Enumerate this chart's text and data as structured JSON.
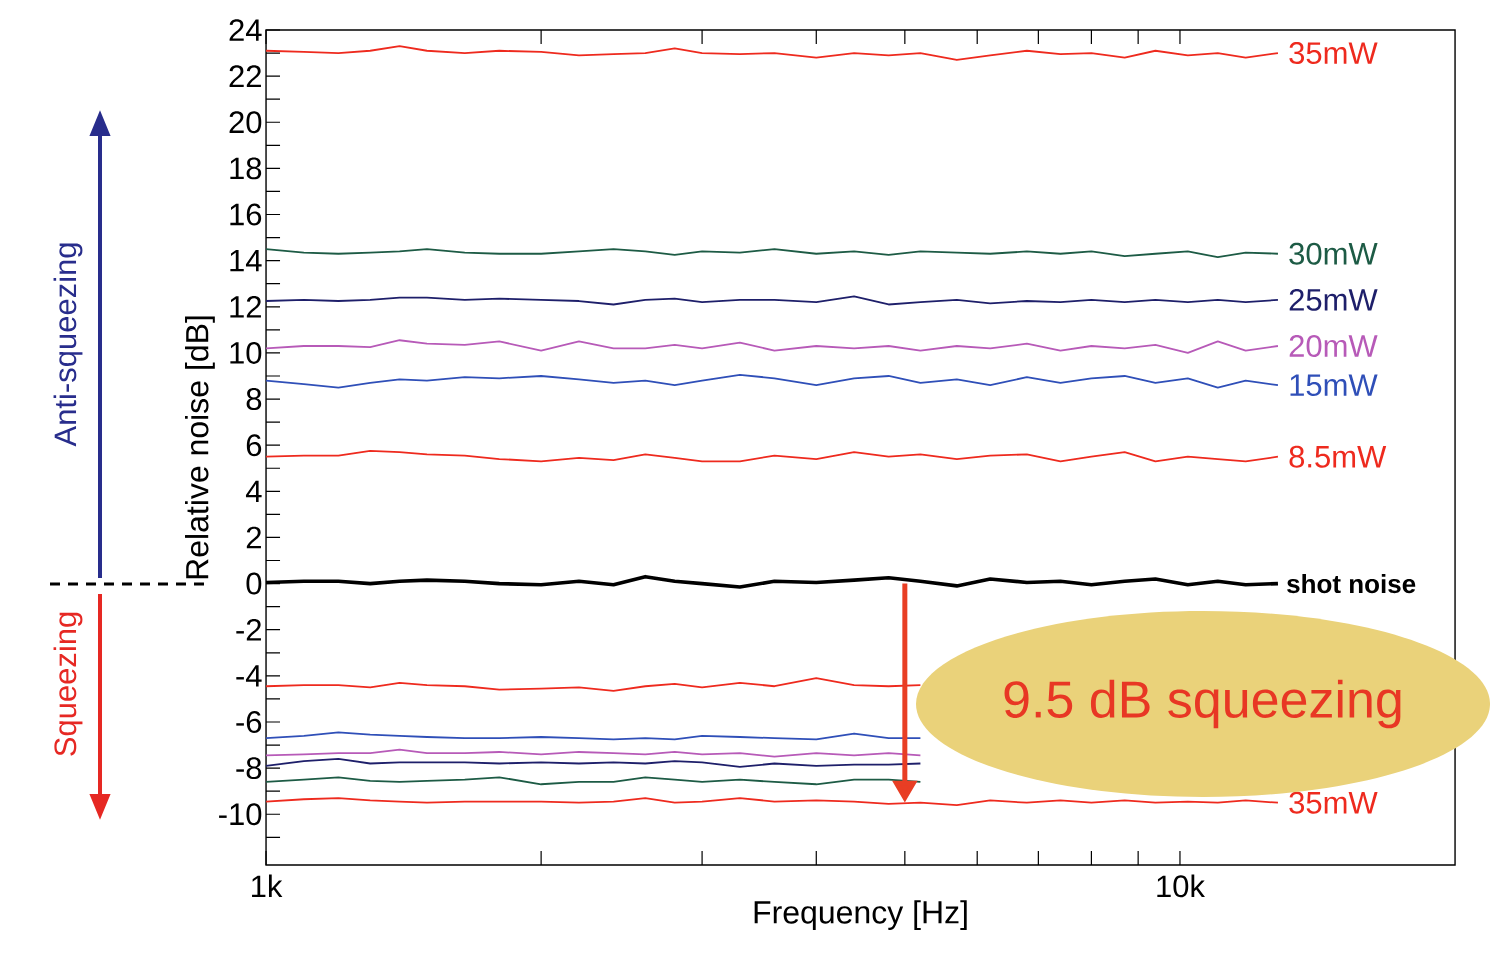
{
  "chart_data": {
    "type": "line",
    "xlabel": "Frequency [Hz]",
    "ylabel": "Relative noise [dB]",
    "log": "x",
    "xlim": [
      1000,
      20000
    ],
    "ylim": [
      -12.2,
      24
    ],
    "xticks": [
      {
        "value": 1000,
        "label": "1k"
      },
      {
        "value": 2000,
        "label": null
      },
      {
        "value": 3000,
        "label": null
      },
      {
        "value": 4000,
        "label": null
      },
      {
        "value": 5000,
        "label": null
      },
      {
        "value": 6000,
        "label": null
      },
      {
        "value": 7000,
        "label": null
      },
      {
        "value": 8000,
        "label": null
      },
      {
        "value": 9000,
        "label": null
      },
      {
        "value": 10000,
        "label": "10k"
      }
    ],
    "yticks": [
      -10,
      {
        "value": -11,
        "label": null
      },
      {
        "value": -9,
        "label": null
      },
      -8,
      {
        "value": -7,
        "label": null
      },
      -6,
      {
        "value": -5,
        "label": null
      },
      -4,
      {
        "value": -3,
        "label": null
      },
      -2,
      {
        "value": -1,
        "label": null
      },
      0,
      {
        "value": 1,
        "label": null
      },
      2,
      {
        "value": 3,
        "label": null
      },
      4,
      {
        "value": 5,
        "label": null
      },
      6,
      {
        "value": 7,
        "label": null
      },
      8,
      {
        "value": 9,
        "label": null
      },
      10,
      {
        "value": 11,
        "label": null
      },
      12,
      {
        "value": 13,
        "label": null
      },
      14,
      {
        "value": 15,
        "label": null
      },
      16,
      {
        "value": 17,
        "label": null
      },
      18,
      {
        "value": 19,
        "label": null
      },
      20,
      {
        "value": 21,
        "label": null
      },
      22,
      {
        "value": 23,
        "label": null
      },
      24
    ],
    "x": [
      1000,
      1100,
      1200,
      1300,
      1400,
      1500,
      1650,
      1800,
      2000,
      2200,
      2400,
      2600,
      2800,
      3000,
      3300,
      3600,
      4000,
      4400,
      4800,
      5200,
      5700,
      6200,
      6800,
      7400,
      8000,
      8700,
      9400,
      10200,
      11000,
      11800,
      12800
    ],
    "series": [
      {
        "name": "35mW",
        "color": "#ee2a1e",
        "values": [
          23.1,
          23.05,
          23.0,
          23.1,
          23.3,
          23.1,
          23.0,
          23.1,
          23.05,
          22.9,
          22.95,
          23.0,
          23.2,
          23.0,
          22.95,
          23.0,
          22.8,
          23.0,
          22.9,
          23.0,
          22.7,
          22.9,
          23.1,
          22.95,
          23.0,
          22.8,
          23.1,
          22.9,
          23.0,
          22.8,
          23.0
        ]
      },
      {
        "name": "30mW",
        "color": "#1d5b45",
        "values": [
          14.5,
          14.35,
          14.3,
          14.35,
          14.4,
          14.5,
          14.35,
          14.3,
          14.3,
          14.4,
          14.5,
          14.4,
          14.25,
          14.4,
          14.35,
          14.5,
          14.3,
          14.4,
          14.25,
          14.4,
          14.35,
          14.3,
          14.4,
          14.3,
          14.4,
          14.2,
          14.3,
          14.4,
          14.15,
          14.35,
          14.3
        ]
      },
      {
        "name": "25mW",
        "color": "#1e1f6a",
        "values": [
          12.25,
          12.3,
          12.25,
          12.3,
          12.4,
          12.4,
          12.3,
          12.35,
          12.3,
          12.25,
          12.1,
          12.3,
          12.35,
          12.2,
          12.3,
          12.3,
          12.2,
          12.45,
          12.1,
          12.2,
          12.3,
          12.15,
          12.25,
          12.2,
          12.3,
          12.2,
          12.3,
          12.2,
          12.3,
          12.2,
          12.3
        ]
      },
      {
        "name": "20mW",
        "color": "#b75ab8",
        "values": [
          10.2,
          10.3,
          10.3,
          10.25,
          10.55,
          10.4,
          10.35,
          10.5,
          10.1,
          10.5,
          10.2,
          10.2,
          10.35,
          10.2,
          10.45,
          10.1,
          10.3,
          10.2,
          10.3,
          10.1,
          10.3,
          10.2,
          10.4,
          10.1,
          10.3,
          10.2,
          10.35,
          10.0,
          10.5,
          10.1,
          10.3
        ]
      },
      {
        "name": "15mW",
        "color": "#2f4fb8",
        "values": [
          8.8,
          8.65,
          8.5,
          8.7,
          8.85,
          8.8,
          8.95,
          8.9,
          9.0,
          8.85,
          8.7,
          8.8,
          8.6,
          8.8,
          9.05,
          8.9,
          8.6,
          8.9,
          9.0,
          8.7,
          8.85,
          8.6,
          8.95,
          8.7,
          8.9,
          9.0,
          8.7,
          8.9,
          8.5,
          8.8,
          8.6
        ]
      },
      {
        "name": "8.5mW",
        "color": "#ee2a1e",
        "values": [
          5.5,
          5.55,
          5.55,
          5.75,
          5.7,
          5.6,
          5.55,
          5.4,
          5.3,
          5.45,
          5.35,
          5.6,
          5.45,
          5.3,
          5.3,
          5.55,
          5.4,
          5.7,
          5.5,
          5.6,
          5.4,
          5.55,
          5.6,
          5.3,
          5.5,
          5.7,
          5.3,
          5.5,
          5.4,
          5.3,
          5.5
        ]
      },
      {
        "name": "shot noise",
        "color": "#000000",
        "values": [
          0.05,
          0.1,
          0.1,
          0.0,
          0.1,
          0.15,
          0.1,
          0.0,
          -0.05,
          0.1,
          -0.05,
          0.3,
          0.1,
          0.0,
          -0.15,
          0.1,
          0.05,
          0.15,
          0.25,
          0.1,
          -0.1,
          0.2,
          0.05,
          0.1,
          -0.05,
          0.1,
          0.2,
          -0.05,
          0.1,
          -0.05,
          0.0
        ]
      },
      {
        "color": "#ee2a1e",
        "values": [
          -4.45,
          -4.4,
          -4.4,
          -4.5,
          -4.3,
          -4.4,
          -4.45,
          -4.6,
          -4.55,
          -4.5,
          -4.65,
          -4.45,
          -4.35,
          -4.5,
          -4.3,
          -4.45,
          -4.1,
          -4.4,
          -4.45,
          -4.4,
          null,
          null,
          null,
          null,
          null,
          null,
          null,
          null,
          null,
          null,
          null
        ]
      },
      {
        "color": "#2f4fb8",
        "values": [
          -6.7,
          -6.6,
          -6.45,
          -6.55,
          -6.6,
          -6.65,
          -6.7,
          -6.7,
          -6.65,
          -6.7,
          -6.75,
          -6.7,
          -6.75,
          -6.6,
          -6.65,
          -6.7,
          -6.75,
          -6.5,
          -6.7,
          -6.7,
          null,
          null,
          null,
          null,
          null,
          null,
          null,
          null,
          null,
          null,
          null
        ]
      },
      {
        "color": "#b75ab8",
        "values": [
          -7.45,
          -7.4,
          -7.35,
          -7.35,
          -7.2,
          -7.35,
          -7.35,
          -7.3,
          -7.4,
          -7.3,
          -7.35,
          -7.4,
          -7.3,
          -7.4,
          -7.35,
          -7.5,
          -7.35,
          -7.45,
          -7.35,
          -7.45,
          null,
          null,
          null,
          null,
          null,
          null,
          null,
          null,
          null,
          null,
          null
        ]
      },
      {
        "color": "#1e1f6a",
        "values": [
          -7.9,
          -7.7,
          -7.6,
          -7.8,
          -7.75,
          -7.75,
          -7.75,
          -7.8,
          -7.75,
          -7.8,
          -7.75,
          -7.8,
          -7.7,
          -7.75,
          -7.95,
          -7.8,
          -7.9,
          -7.85,
          -7.85,
          -7.8,
          null,
          null,
          null,
          null,
          null,
          null,
          null,
          null,
          null,
          null,
          null
        ]
      },
      {
        "color": "#1d5b45",
        "values": [
          -8.6,
          -8.5,
          -8.4,
          -8.55,
          -8.6,
          -8.55,
          -8.5,
          -8.4,
          -8.7,
          -8.6,
          -8.6,
          -8.4,
          -8.5,
          -8.6,
          -8.5,
          -8.6,
          -8.7,
          -8.5,
          -8.5,
          -8.6,
          null,
          null,
          null,
          null,
          null,
          null,
          null,
          null,
          null,
          null,
          null
        ]
      },
      {
        "name": "35mW",
        "color": "#ee2a1e",
        "values": [
          -9.45,
          -9.35,
          -9.3,
          -9.4,
          -9.45,
          -9.5,
          -9.45,
          -9.45,
          -9.45,
          -9.5,
          -9.45,
          -9.3,
          -9.5,
          -9.45,
          -9.3,
          -9.45,
          -9.4,
          -9.45,
          -9.55,
          -9.5,
          -9.6,
          -9.4,
          -9.5,
          -9.4,
          -9.5,
          -9.4,
          -9.5,
          -9.45,
          -9.5,
          -9.4,
          -9.5
        ]
      }
    ],
    "annotations": [
      "Anti-squeezing",
      "Squeezing",
      {
        "text": "9.5 dB squeezing",
        "x": 5000,
        "y": -9.5
      }
    ]
  }
}
